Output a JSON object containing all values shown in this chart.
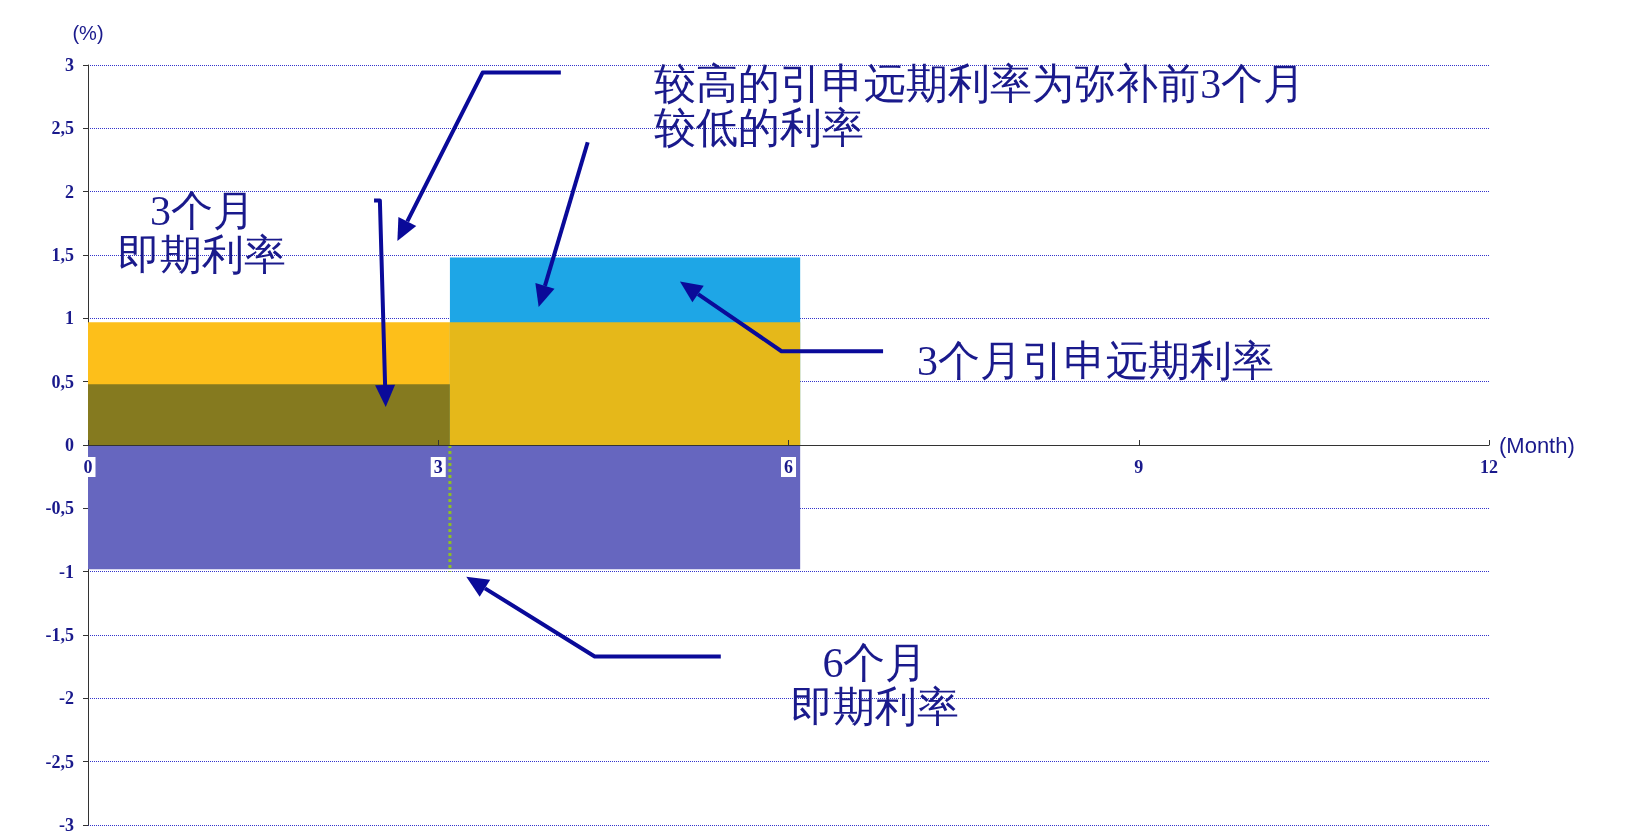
{
  "chart_data": {
    "type": "area",
    "xlabel": "(Month)",
    "ylabel": "(%)",
    "xlim": [
      0,
      12
    ],
    "xticks": [
      0,
      3,
      6,
      9,
      12
    ],
    "ylim": [
      -3,
      3
    ],
    "yticks": [
      {
        "value": -3,
        "label": "-3"
      },
      {
        "value": -2.5,
        "label": "-2,5"
      },
      {
        "value": -2,
        "label": "-2"
      },
      {
        "value": -1.5,
        "label": "-1,5"
      },
      {
        "value": -1,
        "label": "-1"
      },
      {
        "value": -0.5,
        "label": "-0,5"
      },
      {
        "value": 0,
        "label": "0"
      },
      {
        "value": 0.5,
        "label": "0,5"
      },
      {
        "value": 1,
        "label": "1"
      },
      {
        "value": 1.5,
        "label": "1,5"
      },
      {
        "value": 2,
        "label": "2"
      },
      {
        "value": 2.5,
        "label": "2,5"
      },
      {
        "value": 3,
        "label": "3"
      }
    ],
    "grid": "y",
    "series": [
      {
        "color": "#fdbf1a",
        "x": [
          0,
          3.1
        ],
        "values": [
          0.97,
          0.97
        ]
      },
      {
        "color": "#857a1f",
        "x": [
          0,
          3.1
        ],
        "values": [
          0.48,
          0.48
        ]
      },
      {
        "color": "#1ea6e6",
        "x": [
          3.1,
          6.1
        ],
        "values": [
          1.48,
          1.48
        ]
      },
      {
        "color": "#e5b81a",
        "x": [
          3.1,
          6.1
        ],
        "values": [
          0.97,
          0.97
        ]
      },
      {
        "color": "#6666bf",
        "x": [
          0,
          6.1
        ],
        "values": [
          -0.98,
          -0.98
        ]
      },
      {
        "type": "line",
        "color": "#8dc21f",
        "line_style": "dotted",
        "x": [
          3.1,
          3.1
        ],
        "values": [
          0,
          -1
        ]
      }
    ],
    "annotations": [
      "较高的引申远期利率为弥补前3个月较低的利率",
      "3个月即期利率",
      "3个月引申远期利率",
      "6个月即期利率"
    ]
  }
}
